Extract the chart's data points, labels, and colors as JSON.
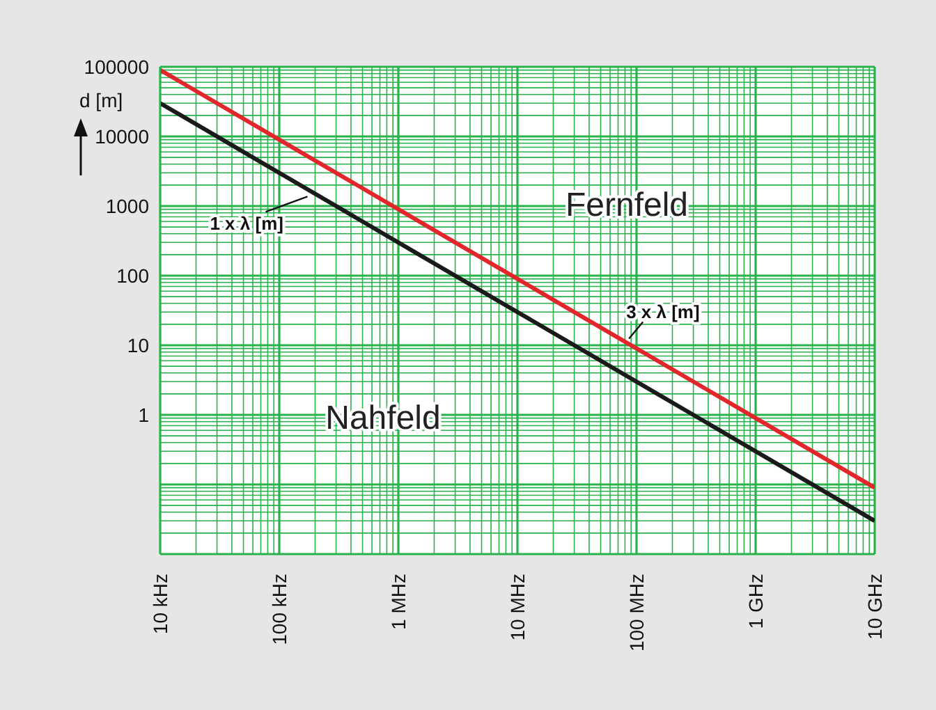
{
  "chart_data": {
    "type": "line",
    "ylabel": "d [m]",
    "categories": [
      "10 kHz",
      "100 kHz",
      "1 MHz",
      "10 MHz",
      "100 MHz",
      "1 GHz",
      "10 GHz"
    ],
    "ylim": [
      0.01,
      100000
    ],
    "yticks": [
      100000,
      {
        "value": 90000,
        "label": null
      },
      {
        "value": 80000,
        "label": null
      },
      {
        "value": 70000,
        "label": null
      },
      {
        "value": 60000,
        "label": null
      },
      {
        "value": 50000,
        "label": null
      },
      {
        "value": 40000,
        "label": null
      },
      {
        "value": 30000,
        "label": null
      },
      {
        "value": 20000,
        "label": null
      },
      10000,
      {
        "value": 9000,
        "label": null
      },
      {
        "value": 8000,
        "label": null
      },
      {
        "value": 7000,
        "label": null
      },
      {
        "value": 6000,
        "label": null
      },
      {
        "value": 5000,
        "label": null
      },
      {
        "value": 4000,
        "label": null
      },
      {
        "value": 3000,
        "label": null
      },
      {
        "value": 2000,
        "label": null
      },
      1000,
      {
        "value": 900,
        "label": null
      },
      {
        "value": 800,
        "label": null
      },
      {
        "value": 700,
        "label": null
      },
      {
        "value": 600,
        "label": null
      },
      {
        "value": 500,
        "label": null
      },
      {
        "value": 400,
        "label": null
      },
      {
        "value": 300,
        "label": null
      },
      {
        "value": 200,
        "label": null
      },
      100,
      {
        "value": 90,
        "label": null
      },
      {
        "value": 80,
        "label": null
      },
      {
        "value": 70,
        "label": null
      },
      {
        "value": 60,
        "label": null
      },
      {
        "value": 50,
        "label": null
      },
      {
        "value": 40,
        "label": null
      },
      {
        "value": 30,
        "label": null
      },
      {
        "value": 20,
        "label": null
      },
      10,
      {
        "value": 9,
        "label": null
      },
      {
        "value": 8,
        "label": null
      },
      {
        "value": 7,
        "label": null
      },
      {
        "value": 6,
        "label": null
      },
      {
        "value": 5,
        "label": null
      },
      {
        "value": 4,
        "label": null
      },
      {
        "value": 3,
        "label": null
      },
      {
        "value": 2,
        "label": null
      },
      1,
      {
        "value": 0.9,
        "label": null
      },
      {
        "value": 0.8,
        "label": null
      },
      {
        "value": 0.7,
        "label": null
      },
      {
        "value": 0.6,
        "label": null
      },
      {
        "value": 0.5,
        "label": null
      },
      {
        "value": 0.4,
        "label": null
      },
      {
        "value": 0.3,
        "label": null
      },
      {
        "value": 0.2,
        "label": null
      },
      {
        "value": 0.1,
        "label": null
      },
      {
        "value": 0.09,
        "label": null
      },
      {
        "value": 0.08,
        "label": null
      },
      {
        "value": 0.07,
        "label": null
      },
      {
        "value": 0.06,
        "label": null
      },
      {
        "value": 0.05,
        "label": null
      },
      {
        "value": 0.04,
        "label": null
      },
      {
        "value": 0.03,
        "label": null
      },
      {
        "value": 0.02,
        "label": null
      },
      {
        "value": 0.01,
        "label": null
      }
    ],
    "log": "y",
    "grid": true,
    "marker": "none",
    "line_style": "solid",
    "annotations": [
      "Fernfeld",
      "Nahfeld"
    ],
    "series": [
      {
        "name": "1 x λ [m]",
        "color": "#1a1a1a",
        "values": [
          30000,
          3000,
          300,
          30,
          3,
          0.3,
          0.03
        ]
      },
      {
        "name": "3 x λ [m]",
        "color": "#e3262b",
        "values": [
          90000,
          9000,
          900,
          90,
          9,
          0.9,
          0.09
        ]
      }
    ]
  }
}
